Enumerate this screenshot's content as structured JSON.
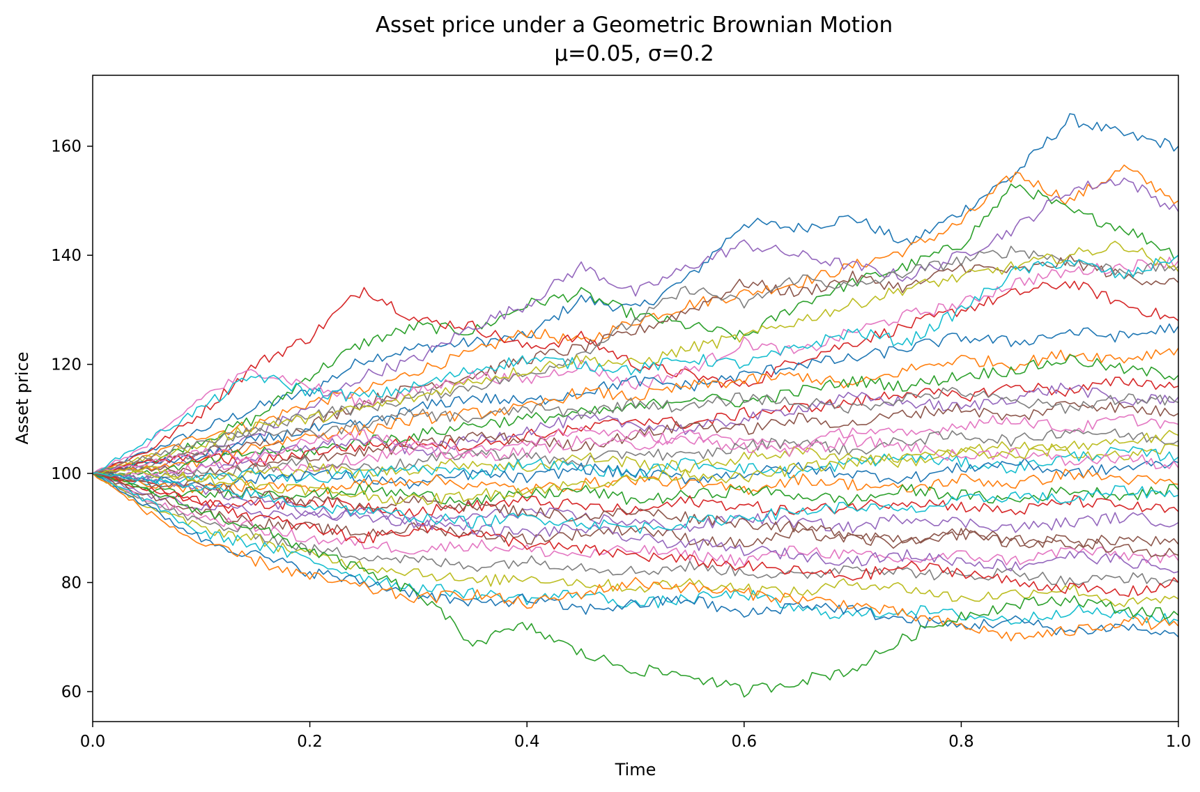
{
  "chart_data": {
    "type": "line",
    "title": "Asset price under a Geometric Brownian Motion",
    "subtitle": "μ=0.05, σ=0.2",
    "xlabel": "Time",
    "ylabel": "Asset price",
    "xlim": [
      0.0,
      1.0
    ],
    "ylim": [
      54.5,
      173.0
    ],
    "grid": false,
    "legend": "none",
    "x_ticks": [
      {
        "value": 0.0,
        "label": "0.0"
      },
      {
        "value": 0.2,
        "label": "0.2"
      },
      {
        "value": 0.4,
        "label": "0.4"
      },
      {
        "value": 0.6,
        "label": "0.6"
      },
      {
        "value": 0.8,
        "label": "0.8"
      },
      {
        "value": 1.0,
        "label": "1.0"
      }
    ],
    "y_ticks": [
      {
        "value": 60,
        "label": "60"
      },
      {
        "value": 80,
        "label": "80"
      },
      {
        "value": 100,
        "label": "100"
      },
      {
        "value": 120,
        "label": "120"
      },
      {
        "value": 140,
        "label": "140"
      },
      {
        "value": 160,
        "label": "160"
      }
    ],
    "colors": [
      "#1f77b4",
      "#ff7f0e",
      "#2ca02c",
      "#d62728",
      "#9467bd",
      "#8c564b",
      "#e377c2",
      "#7f7f7f",
      "#bcbd22",
      "#17becf"
    ],
    "x": [
      0.0,
      0.05,
      0.1,
      0.15,
      0.2,
      0.25,
      0.3,
      0.35,
      0.4,
      0.45,
      0.5,
      0.55,
      0.6,
      0.65,
      0.7,
      0.75,
      0.8,
      0.85,
      0.9,
      0.95,
      1.0
    ],
    "series": [
      {
        "values": [
          100,
          104,
          108,
          112,
          115,
          121,
          123,
          124,
          125,
          132,
          130,
          136,
          146,
          145,
          147,
          142,
          148,
          155,
          165,
          162,
          160
        ]
      },
      {
        "values": [
          100,
          103,
          107,
          109,
          113,
          115,
          119,
          122,
          126,
          124,
          128,
          131,
          133,
          135,
          138,
          141,
          146,
          155,
          150,
          156,
          150
        ]
      },
      {
        "values": [
          100,
          102,
          106,
          110,
          118,
          124,
          127,
          126,
          131,
          133,
          129,
          127,
          125,
          131,
          135,
          138,
          142,
          153,
          148,
          145,
          140
        ]
      },
      {
        "values": [
          100,
          104,
          111,
          120,
          125,
          134,
          128,
          127,
          123,
          125,
          120,
          118,
          116,
          121,
          124,
          127,
          130,
          133,
          135,
          131,
          128
        ]
      },
      {
        "values": [
          100,
          101,
          103,
          107,
          112,
          118,
          121,
          127,
          131,
          138,
          133,
          138,
          142,
          140,
          138,
          136,
          140,
          145,
          152,
          154,
          148
        ]
      },
      {
        "values": [
          100,
          102,
          104,
          105,
          109,
          113,
          116,
          118,
          121,
          123,
          126,
          130,
          135,
          133,
          136,
          134,
          138,
          137,
          139,
          136,
          135
        ]
      },
      {
        "values": [
          100,
          105,
          114,
          119,
          116,
          113,
          115,
          118,
          117,
          120,
          116,
          119,
          124,
          122,
          126,
          129,
          131,
          135,
          137,
          138,
          139
        ]
      },
      {
        "values": [
          100,
          101,
          104,
          108,
          111,
          112,
          114,
          116,
          118,
          122,
          128,
          134,
          131,
          136,
          134,
          137,
          139,
          141,
          139,
          137,
          138
        ]
      },
      {
        "values": [
          100,
          103,
          105,
          109,
          110,
          112,
          114,
          117,
          119,
          121,
          120,
          123,
          125,
          128,
          131,
          134,
          136,
          138,
          140,
          142,
          137
        ]
      },
      {
        "values": [
          100,
          106,
          112,
          118,
          115,
          114,
          116,
          119,
          121,
          120,
          119,
          121,
          120,
          123,
          126,
          124,
          130,
          137,
          139,
          136,
          140
        ]
      },
      {
        "values": [
          100,
          102,
          103,
          106,
          108,
          109,
          112,
          114,
          113,
          115,
          117,
          116,
          118,
          120,
          121,
          123,
          125,
          124,
          126,
          125,
          127
        ]
      },
      {
        "values": [
          100,
          101,
          102,
          105,
          107,
          108,
          110,
          111,
          112,
          115,
          114,
          116,
          117,
          118,
          116,
          119,
          121,
          120,
          122,
          121,
          123
        ]
      },
      {
        "values": [
          100,
          100,
          102,
          104,
          104,
          106,
          107,
          109,
          110,
          111,
          112,
          114,
          113,
          115,
          117,
          116,
          118,
          119,
          121,
          119,
          118
        ]
      },
      {
        "values": [
          100,
          102,
          103,
          102,
          104,
          105,
          106,
          105,
          107,
          108,
          110,
          109,
          111,
          112,
          113,
          115,
          114,
          116,
          115,
          117,
          116
        ]
      },
      {
        "values": [
          100,
          99,
          101,
          103,
          105,
          106,
          104,
          106,
          108,
          110,
          109,
          108,
          110,
          112,
          114,
          113,
          112,
          114,
          116,
          113,
          114
        ]
      },
      {
        "values": [
          100,
          101,
          100,
          101,
          103,
          104,
          105,
          107,
          106,
          105,
          107,
          109,
          108,
          110,
          109,
          111,
          112,
          110,
          113,
          112,
          111
        ]
      },
      {
        "values": [
          100,
          100,
          101,
          102,
          101,
          103,
          104,
          103,
          104,
          106,
          105,
          107,
          106,
          105,
          108,
          107,
          109,
          110,
          108,
          110,
          109
        ]
      },
      {
        "values": [
          100,
          99,
          100,
          101,
          102,
          101,
          102,
          104,
          103,
          102,
          104,
          103,
          105,
          106,
          104,
          106,
          107,
          106,
          108,
          107,
          106
        ]
      },
      {
        "values": [
          100,
          100,
          99,
          100,
          101,
          100,
          101,
          102,
          101,
          103,
          102,
          101,
          103,
          104,
          103,
          102,
          104,
          105,
          104,
          103,
          105
        ]
      },
      {
        "values": [
          100,
          98,
          99,
          100,
          99,
          100,
          101,
          100,
          102,
          101,
          100,
          102,
          101,
          100,
          102,
          103,
          102,
          101,
          103,
          104,
          103
        ]
      },
      {
        "values": [
          100,
          99,
          98,
          99,
          100,
          99,
          98,
          100,
          99,
          101,
          100,
          99,
          100,
          101,
          100,
          99,
          101,
          102,
          100,
          101,
          102
        ]
      },
      {
        "values": [
          100,
          98,
          97,
          98,
          97,
          98,
          99,
          98,
          97,
          98,
          99,
          98,
          97,
          99,
          98,
          97,
          99,
          98,
          100,
          99,
          98
        ]
      },
      {
        "values": [
          100,
          97,
          96,
          97,
          96,
          97,
          96,
          95,
          96,
          97,
          95,
          96,
          97,
          96,
          95,
          97,
          96,
          95,
          97,
          96,
          97
        ]
      },
      {
        "values": [
          100,
          97,
          95,
          94,
          95,
          94,
          93,
          94,
          95,
          94,
          93,
          95,
          94,
          93,
          94,
          95,
          94,
          93,
          95,
          94,
          93
        ]
      },
      {
        "values": [
          100,
          96,
          94,
          93,
          92,
          93,
          91,
          92,
          93,
          92,
          91,
          90,
          92,
          91,
          90,
          92,
          91,
          90,
          91,
          92,
          91
        ]
      },
      {
        "values": [
          100,
          96,
          93,
          91,
          90,
          89,
          90,
          89,
          88,
          89,
          90,
          88,
          87,
          89,
          88,
          87,
          89,
          88,
          87,
          88,
          87
        ]
      },
      {
        "values": [
          100,
          95,
          92,
          90,
          88,
          87,
          86,
          87,
          86,
          85,
          86,
          85,
          84,
          86,
          85,
          84,
          85,
          84,
          86,
          85,
          84
        ]
      },
      {
        "values": [
          100,
          95,
          91,
          89,
          86,
          85,
          84,
          83,
          84,
          83,
          82,
          83,
          82,
          81,
          83,
          82,
          81,
          82,
          80,
          81,
          80
        ]
      },
      {
        "values": [
          100,
          94,
          90,
          88,
          85,
          83,
          82,
          80,
          81,
          80,
          79,
          80,
          79,
          78,
          80,
          79,
          77,
          78,
          79,
          76,
          77
        ]
      },
      {
        "values": [
          100,
          95,
          89,
          87,
          84,
          81,
          79,
          78,
          77,
          78,
          76,
          77,
          78,
          75,
          74,
          75,
          74,
          73,
          75,
          74,
          73
        ]
      },
      {
        "values": [
          100,
          94,
          88,
          85,
          82,
          80,
          78,
          76,
          77,
          75,
          76,
          77,
          74,
          76,
          75,
          73,
          72,
          73,
          71,
          72,
          70
        ]
      },
      {
        "values": [
          100,
          93,
          87,
          84,
          81,
          79,
          77,
          78,
          76,
          78,
          80,
          79,
          78,
          77,
          76,
          74,
          72,
          70,
          71,
          73,
          72
        ]
      },
      {
        "values": [
          100,
          97,
          93,
          90,
          86,
          82,
          78,
          69,
          72,
          67,
          64,
          63,
          60,
          62,
          64,
          70,
          74,
          76,
          77,
          75,
          74
        ]
      },
      {
        "values": [
          100,
          98,
          95,
          92,
          90,
          88,
          90,
          89,
          87,
          86,
          85,
          84,
          83,
          82,
          81,
          83,
          82,
          80,
          79,
          78,
          80
        ]
      },
      {
        "values": [
          100,
          99,
          97,
          95,
          93,
          92,
          91,
          90,
          89,
          90,
          88,
          87,
          86,
          85,
          84,
          85,
          84,
          83,
          85,
          84,
          82
        ]
      },
      {
        "values": [
          100,
          98,
          98,
          96,
          95,
          94,
          95,
          94,
          93,
          92,
          93,
          92,
          91,
          90,
          89,
          88,
          89,
          87,
          88,
          86,
          85
        ]
      },
      {
        "values": [
          100,
          102,
          104,
          103,
          106,
          107,
          105,
          104,
          106,
          108,
          107,
          106,
          105,
          104,
          106,
          105,
          103,
          104,
          102,
          103,
          101
        ]
      },
      {
        "values": [
          100,
          103,
          106,
          108,
          107,
          109,
          111,
          110,
          112,
          111,
          113,
          112,
          114,
          113,
          112,
          114,
          115,
          113,
          112,
          114,
          113
        ]
      },
      {
        "values": [
          100,
          101,
          99,
          98,
          97,
          96,
          95,
          96,
          97,
          98,
          99,
          100,
          99,
          101,
          102,
          103,
          104,
          103,
          105,
          106,
          107
        ]
      },
      {
        "values": [
          100,
          99,
          97,
          96,
          94,
          93,
          92,
          91,
          92,
          91,
          90,
          91,
          92,
          93,
          94,
          93,
          95,
          96,
          95,
          97,
          96
        ]
      }
    ]
  }
}
